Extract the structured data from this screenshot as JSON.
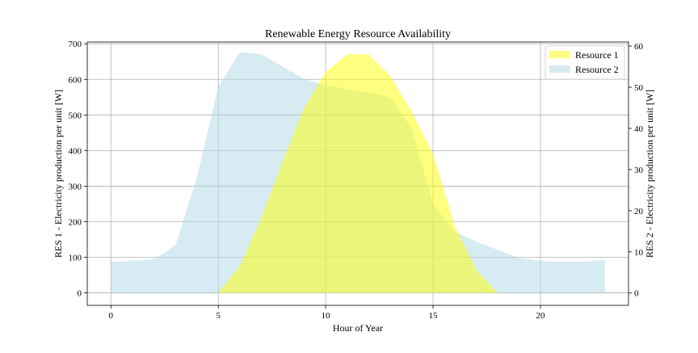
{
  "chart_data": {
    "type": "area",
    "title": "Renewable Energy Resource Availability",
    "xlabel": "Hour of Year",
    "ylabel": "RES 1 - Electricity production per unit [W]",
    "y2label": "RES 2 - Electricity production per unit [W]",
    "xlim": [
      -1.1,
      24.1
    ],
    "ylim": [
      -35,
      705
    ],
    "y2lim": [
      -3,
      61
    ],
    "xticks": [
      0,
      5,
      10,
      15,
      20
    ],
    "yticks": [
      0,
      100,
      200,
      300,
      400,
      500,
      600,
      700
    ],
    "y2ticks": [
      0,
      10,
      20,
      30,
      40,
      50,
      60
    ],
    "grid": true,
    "legend_position": "top-right",
    "x": [
      0,
      1,
      2,
      3,
      4,
      5,
      6,
      7,
      8,
      9,
      10,
      11,
      12,
      13,
      14,
      15,
      16,
      17,
      18,
      19,
      20,
      21,
      22,
      23
    ],
    "series": [
      {
        "name": "Resource 1",
        "axis": "left",
        "color": "#ffff00",
        "opacity": 0.5,
        "values": [
          0,
          0,
          0,
          0,
          0,
          0,
          75,
          210,
          370,
          520,
          620,
          670,
          670,
          610,
          510,
          390,
          190,
          65,
          0,
          0,
          0,
          0,
          0,
          0
        ]
      },
      {
        "name": "Resource 2",
        "axis": "right",
        "color": "#add8e6",
        "opacity": 0.5,
        "values": [
          7.6,
          7.8,
          8.2,
          11.5,
          28,
          50,
          58.5,
          58,
          55,
          52,
          50.5,
          49.5,
          48.8,
          47.5,
          40,
          21.5,
          15,
          12.5,
          10.5,
          8.5,
          7.8,
          7.6,
          7.6,
          8
        ]
      }
    ]
  }
}
